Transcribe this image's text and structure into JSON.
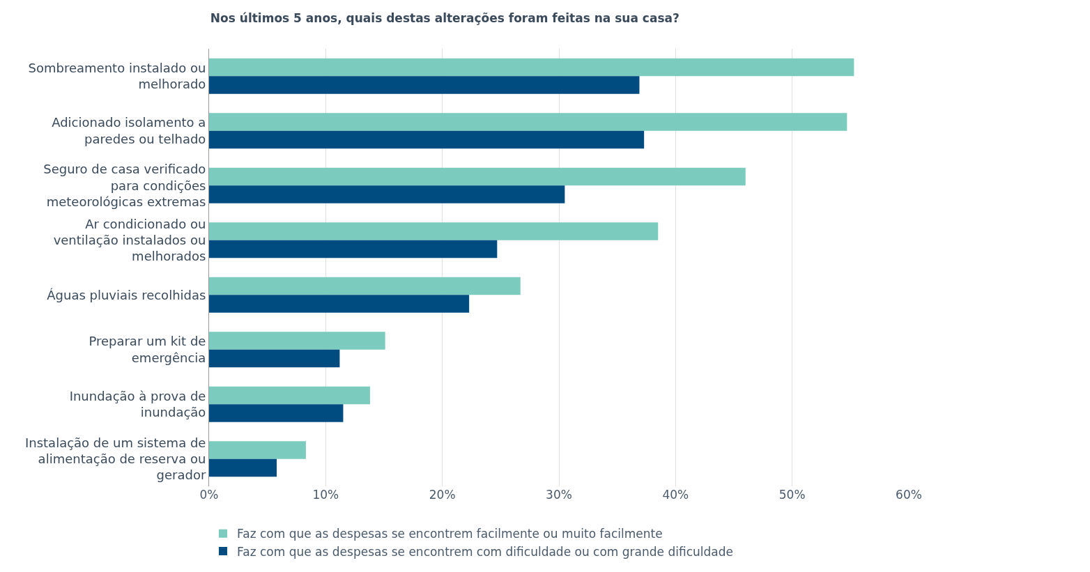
{
  "chart_data": {
    "type": "bar",
    "orientation": "horizontal",
    "title": "Nos últimos 5 anos, quais destas alterações foram feitas na sua casa?",
    "categories": [
      "Sombreamento instalado ou melhorado",
      "Adicionado isolamento a paredes ou telhado",
      "Seguro de casa verificado para condições meteorológicas extremas",
      "Ar condicionado ou ventilação instalados ou melhorados",
      "Águas pluviais recolhidas",
      "Preparar um kit de emergência",
      "Inundação à prova de inundação",
      "Instalação de um sistema de alimentação de reserva ou gerador"
    ],
    "series": [
      {
        "name": "Faz com que as despesas se encontrem facilmente ou muito facilmente",
        "color": "#7ccbbf",
        "values": [
          55.3,
          54.7,
          46.0,
          38.5,
          26.7,
          15.1,
          13.8,
          8.3
        ]
      },
      {
        "name": "Faz com que as despesas se encontrem com dificuldade ou com grande dificuldade",
        "color": "#004b80",
        "values": [
          36.9,
          37.3,
          30.5,
          24.7,
          22.3,
          11.2,
          11.5,
          5.8
        ]
      }
    ],
    "xlim": [
      0,
      60
    ],
    "xticks": [
      {
        "value": 0,
        "label": "0%"
      },
      {
        "value": 10,
        "label": "10%"
      },
      {
        "value": 20,
        "label": "20%"
      },
      {
        "value": 30,
        "label": "30%"
      },
      {
        "value": 40,
        "label": "40%"
      },
      {
        "value": 50,
        "label": "50%"
      },
      {
        "value": 60,
        "label": "60%"
      }
    ],
    "grid": "x",
    "legend": "bottom"
  }
}
